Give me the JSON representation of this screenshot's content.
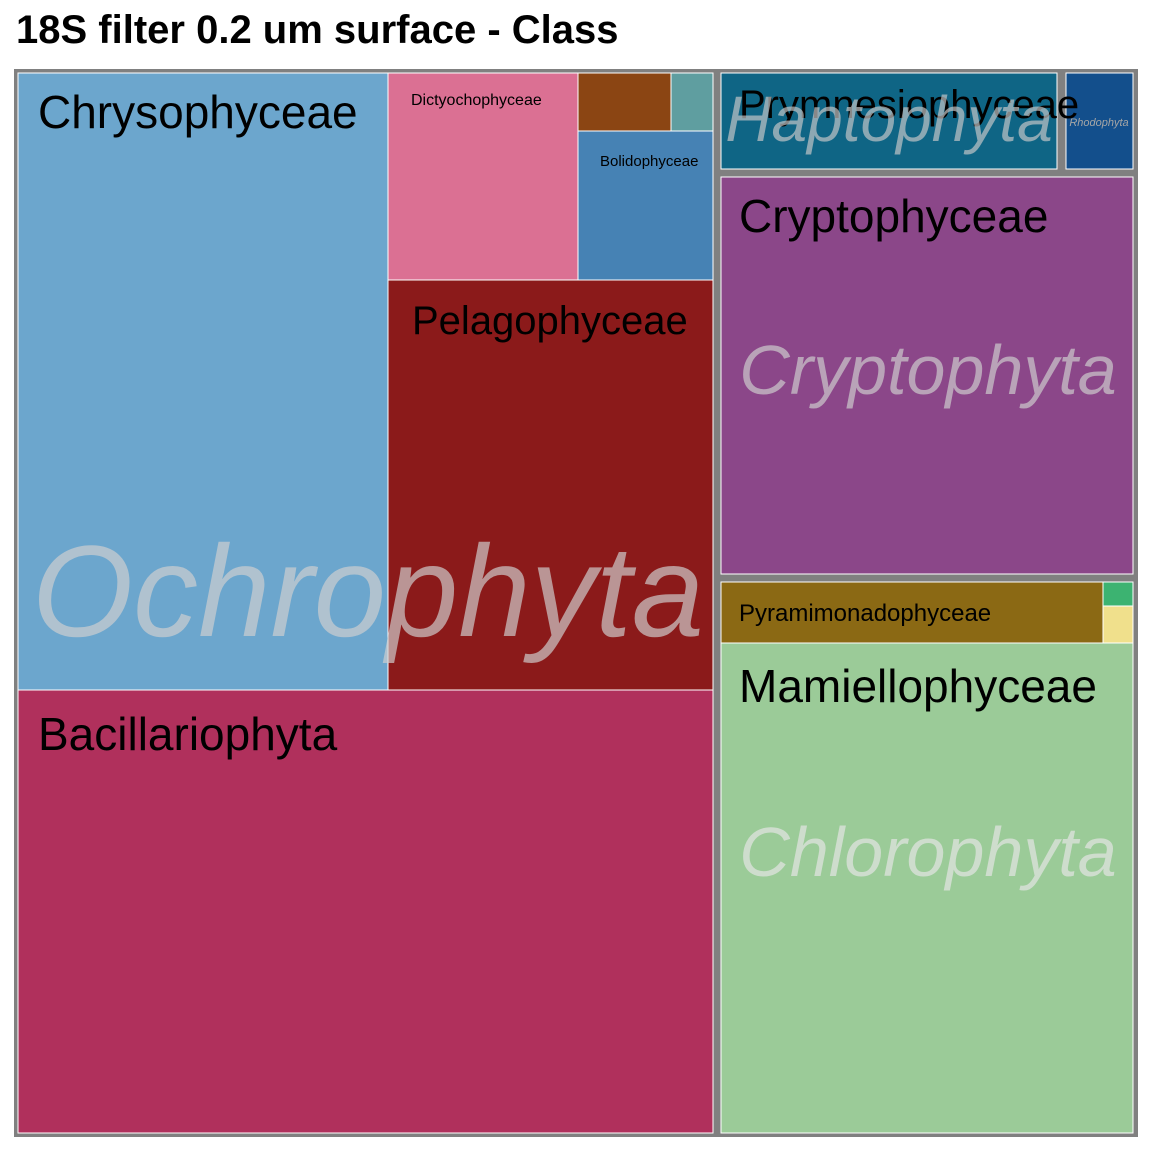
{
  "chart_data": {
    "type": "treemap",
    "title": "18S filter 0.2 um surface - Class",
    "groups": [
      {
        "name": "Ochrophyta",
        "label_color": "#d0d0d0",
        "cells": [
          {
            "name": "Chrysophyceae",
            "value": 22.9,
            "color": "#6ca6cd",
            "label": "Chrysophyceae"
          },
          {
            "name": "Bacillariophyta",
            "value": 28.8,
            "color": "#b0305c",
            "label": "Bacillariophyta"
          },
          {
            "name": "Pelagophyceae",
            "value": 16.7,
            "color": "#8b1a1a",
            "label": "Pelagophyceae"
          },
          {
            "name": "Dictyochophyceae",
            "value": 4.8,
            "color": "#db7093",
            "label": "Dictyochophyceae"
          },
          {
            "name": "Bolidophyceae",
            "value": 3.1,
            "color": "#4682b4",
            "label": "Bolidophyceae"
          },
          {
            "name": "Unnamed class 1",
            "value": 0.6,
            "color": "#8b4513",
            "label": ""
          },
          {
            "name": "Unnamed class 2",
            "value": 0.3,
            "color": "#5f9ea0",
            "label": ""
          }
        ]
      },
      {
        "name": "Haptophyta",
        "label_color": "#c8c8c8",
        "cells": [
          {
            "name": "Prymnesiophyceae",
            "value": 2.6,
            "color": "#0f6585",
            "label": "Prymnesiophyceae"
          }
        ]
      },
      {
        "name": "Rhodophyta",
        "label_color": "#a6a6a6",
        "cells": [
          {
            "name": "Rhodophyta",
            "value": 0.5,
            "color": "#134f8c",
            "label": "Rhodophyta"
          }
        ]
      },
      {
        "name": "Cryptophyta",
        "label_color": "#cfcfcf",
        "cells": [
          {
            "name": "Cryptophyceae",
            "value": 11.5,
            "color": "#8b4789",
            "label": "Cryptophyceae"
          }
        ]
      },
      {
        "name": "Chlorophyta",
        "label_color": "#e6e6e6",
        "cells": [
          {
            "name": "Pyramimonadophyceae",
            "value": 1.7,
            "color": "#8b6914",
            "label": "Pyramimonadophyceae"
          },
          {
            "name": "Mamiellophyceae",
            "value": 13.8,
            "color": "#9bcb98",
            "label": "Mamiellophyceae"
          },
          {
            "name": "Unnamed class 3",
            "value": 0.1,
            "color": "#3cb371",
            "label": ""
          },
          {
            "name": "Unnamed class 4",
            "value": 0.1,
            "color": "#f0e08c",
            "label": ""
          }
        ]
      }
    ]
  }
}
